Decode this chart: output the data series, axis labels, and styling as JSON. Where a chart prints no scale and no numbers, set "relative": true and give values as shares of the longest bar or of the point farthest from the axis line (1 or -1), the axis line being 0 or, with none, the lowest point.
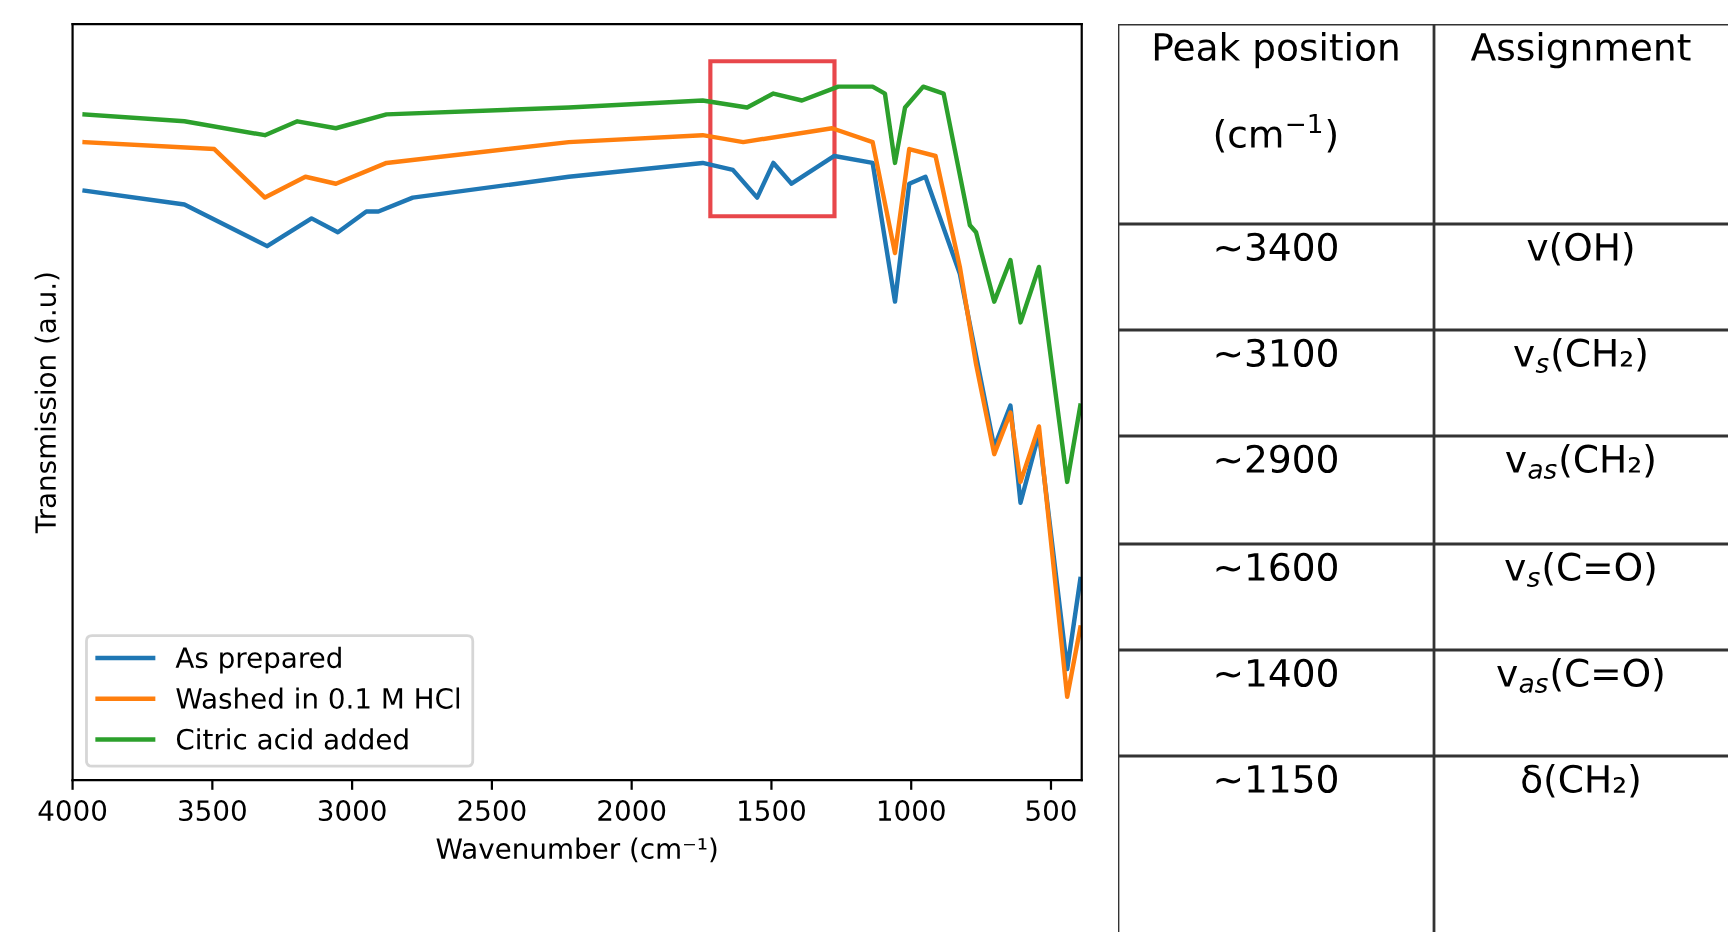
{
  "chart_data": [
    {
      "type": "line",
      "relative": true,
      "xlabel": "Wavenumber (cm⁻¹)",
      "ylabel": "Transmission (a.u.)",
      "xlim": [
        4000,
        390
      ],
      "xticks": [
        4000,
        3500,
        3000,
        2500,
        2000,
        1500,
        1000,
        500
      ],
      "tick_labels": "x",
      "legend": "bottom left",
      "grid": false,
      "line_style": "solid",
      "marker": "none",
      "series": [
        {
          "name": "As prepared",
          "color": "#1f77b4",
          "x": [
            3957,
            3600,
            3304,
            3145,
            3051,
            2949,
            2906,
            2783,
            2225,
            1746,
            1638,
            1551,
            1493,
            1428,
            1275,
            1138,
            1058,
            1007,
            949,
            826,
            703,
            645,
            609,
            543,
            442,
            395
          ],
          "values": [
            0.85,
            0.83,
            0.77,
            0.81,
            0.79,
            0.82,
            0.82,
            0.84,
            0.87,
            0.89,
            0.88,
            0.84,
            0.89,
            0.86,
            0.9,
            0.89,
            0.69,
            0.86,
            0.87,
            0.73,
            0.48,
            0.54,
            0.4,
            0.5,
            0.16,
            0.29
          ]
        },
        {
          "name": "Washed in 0.1 M HCl",
          "color": "#ff7f0e",
          "x": [
            3957,
            3493,
            3312,
            3167,
            3058,
            2877,
            2225,
            1746,
            1601,
            1283,
            1138,
            1058,
            1007,
            913,
            826,
            768,
            703,
            645,
            609,
            543,
            442,
            395
          ],
          "values": [
            0.92,
            0.91,
            0.84,
            0.87,
            0.86,
            0.89,
            0.92,
            0.93,
            0.92,
            0.94,
            0.92,
            0.76,
            0.91,
            0.9,
            0.74,
            0.6,
            0.47,
            0.53,
            0.43,
            0.51,
            0.12,
            0.22
          ]
        },
        {
          "name": "Citric acid added",
          "color": "#2ca02c",
          "x": [
            3957,
            3600,
            3312,
            3196,
            3058,
            2877,
            2225,
            1746,
            1587,
            1493,
            1391,
            1261,
            1138,
            1094,
            1058,
            1022,
            957,
            884,
            790,
            768,
            703,
            645,
            609,
            543,
            442,
            395
          ],
          "values": [
            0.96,
            0.95,
            0.93,
            0.95,
            0.94,
            0.96,
            0.97,
            0.98,
            0.97,
            0.99,
            0.98,
            1.0,
            1.0,
            0.99,
            0.89,
            0.97,
            1.0,
            0.99,
            0.8,
            0.79,
            0.69,
            0.75,
            0.66,
            0.74,
            0.43,
            0.54
          ]
        }
      ]
    },
    {
      "type": "other",
      "annotations": [
        "Peak position\n\n(cm$^{−1}$)",
        "Assignment",
        "~3400",
        "v(OH)",
        "~3100",
        "v$_{s}$(CH₂)",
        "~2900",
        "v$_{as}$(CH₂)",
        "~1600",
        "v$_{s}$(C=O)",
        "~1400",
        "v$_{as}$(C=O)",
        "~1150",
        "δ(CH₂)"
      ]
    }
  ]
}
